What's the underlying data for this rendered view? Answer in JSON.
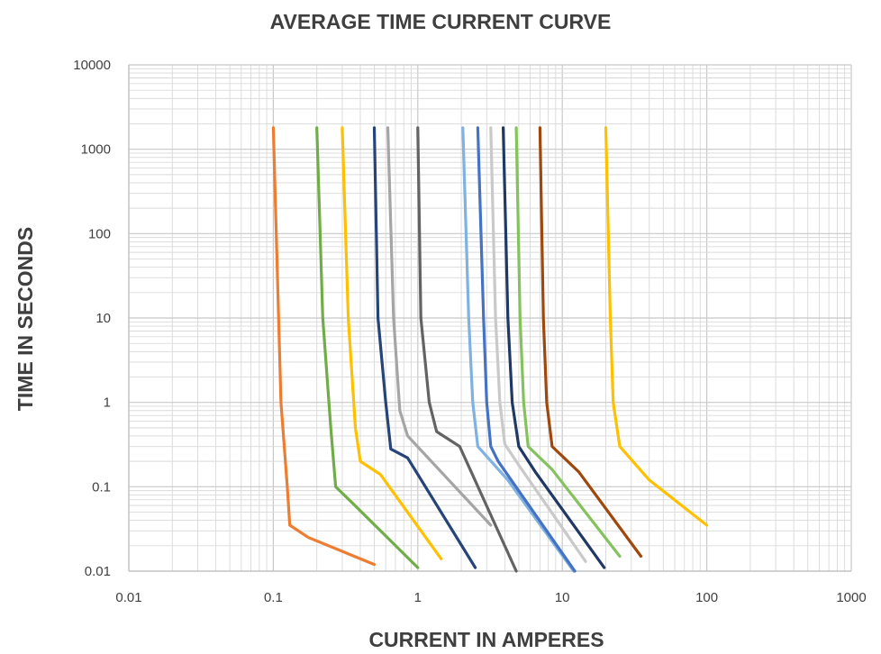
{
  "chart_data": {
    "type": "line",
    "title": "AVERAGE TIME CURRENT CURVE",
    "xlabel": "CURRENT IN AMPERES",
    "ylabel": "TIME IN SECONDS",
    "x_scale": "log",
    "y_scale": "log",
    "xlim": [
      0.01,
      1000
    ],
    "ylim": [
      0.01,
      10000
    ],
    "x_ticks": [
      "0.01",
      "0.1",
      "1",
      "10",
      "100",
      "1000"
    ],
    "y_ticks": [
      "0.01",
      "0.1",
      "1",
      "10",
      "100",
      "1000",
      "10000"
    ],
    "grid": true,
    "legend": "none",
    "series": [
      {
        "color": "#ed7d31",
        "points": [
          [
            0.1,
            1800
          ],
          [
            0.113,
            1
          ],
          [
            0.125,
            0.1
          ],
          [
            0.13,
            0.035
          ],
          [
            0.175,
            0.025
          ],
          [
            0.5,
            0.012
          ]
        ]
      },
      {
        "color": "#70ad47",
        "points": [
          [
            0.2,
            1800
          ],
          [
            0.22,
            10
          ],
          [
            0.25,
            0.5
          ],
          [
            0.27,
            0.1
          ],
          [
            0.35,
            0.065
          ],
          [
            1.0,
            0.011
          ]
        ]
      },
      {
        "color": "#ffc000",
        "points": [
          [
            0.3,
            1800
          ],
          [
            0.33,
            10
          ],
          [
            0.37,
            0.5
          ],
          [
            0.4,
            0.2
          ],
          [
            0.55,
            0.14
          ],
          [
            1.45,
            0.014
          ]
        ]
      },
      {
        "color": "#264478",
        "points": [
          [
            0.5,
            1800
          ],
          [
            0.53,
            10
          ],
          [
            0.6,
            1
          ],
          [
            0.65,
            0.28
          ],
          [
            0.85,
            0.22
          ],
          [
            2.5,
            0.011
          ]
        ]
      },
      {
        "color": "#a5a5a5",
        "points": [
          [
            0.62,
            1800
          ],
          [
            0.68,
            10
          ],
          [
            0.75,
            0.8
          ],
          [
            0.85,
            0.4
          ],
          [
            3.2,
            0.035
          ]
        ]
      },
      {
        "color": "#636363",
        "points": [
          [
            1.0,
            1800
          ],
          [
            1.05,
            10
          ],
          [
            1.2,
            1
          ],
          [
            1.35,
            0.45
          ],
          [
            1.95,
            0.3
          ],
          [
            4.8,
            0.01
          ]
        ]
      },
      {
        "color": "#7fb2e0",
        "points": [
          [
            2.05,
            1800
          ],
          [
            2.25,
            10
          ],
          [
            2.4,
            1
          ],
          [
            2.6,
            0.3
          ],
          [
            4.2,
            0.12
          ],
          [
            12.0,
            0.01
          ]
        ]
      },
      {
        "color": "#4472c4",
        "points": [
          [
            2.6,
            1800
          ],
          [
            2.85,
            10
          ],
          [
            3.0,
            1
          ],
          [
            3.2,
            0.3
          ],
          [
            3.6,
            0.2
          ],
          [
            12.2,
            0.01
          ]
        ]
      },
      {
        "color": "#c9c9c9",
        "points": [
          [
            3.2,
            1800
          ],
          [
            3.45,
            10
          ],
          [
            3.7,
            1
          ],
          [
            4.0,
            0.32
          ],
          [
            5.0,
            0.18
          ],
          [
            14.5,
            0.013
          ]
        ]
      },
      {
        "color": "#1f3864",
        "points": [
          [
            3.9,
            1800
          ],
          [
            4.2,
            10
          ],
          [
            4.5,
            1
          ],
          [
            5.0,
            0.3
          ],
          [
            6.5,
            0.15
          ],
          [
            19.5,
            0.011
          ]
        ]
      },
      {
        "color": "#84c25e",
        "points": [
          [
            4.8,
            1800
          ],
          [
            5.1,
            10
          ],
          [
            5.4,
            1
          ],
          [
            5.8,
            0.3
          ],
          [
            8.5,
            0.16
          ],
          [
            25.0,
            0.015
          ]
        ]
      },
      {
        "color": "#9e480e",
        "points": [
          [
            7.0,
            1800
          ],
          [
            7.4,
            10
          ],
          [
            7.8,
            1
          ],
          [
            8.5,
            0.3
          ],
          [
            13.0,
            0.15
          ],
          [
            35.0,
            0.015
          ]
        ]
      },
      {
        "color": "#ffc000",
        "points": [
          [
            20.0,
            1800
          ],
          [
            21.5,
            10
          ],
          [
            22.5,
            1
          ],
          [
            25.0,
            0.3
          ],
          [
            40.0,
            0.12
          ],
          [
            100.0,
            0.035
          ]
        ]
      }
    ]
  }
}
